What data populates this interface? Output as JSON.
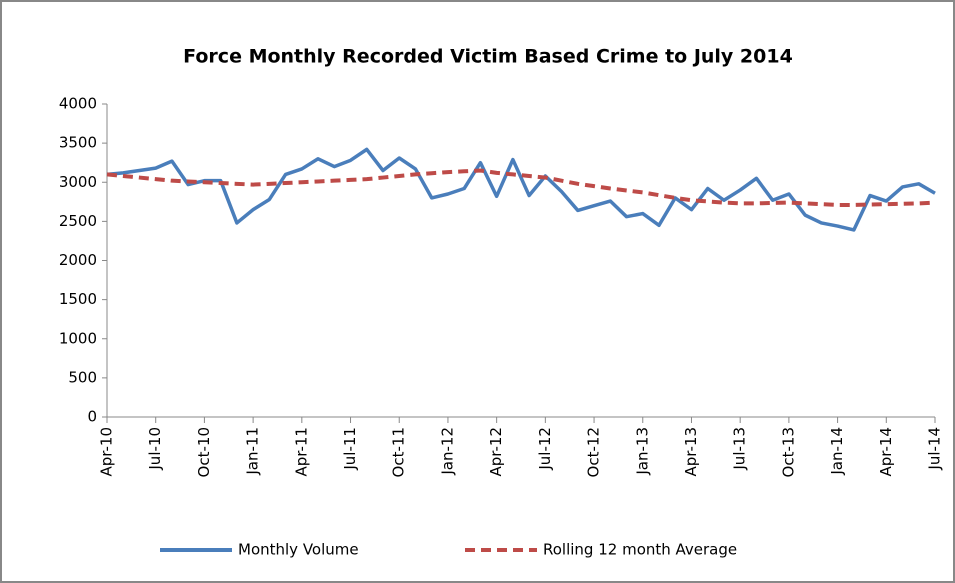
{
  "chart_data": {
    "type": "line",
    "title": "Force Monthly Recorded Victim Based Crime to July 2014",
    "categories": [
      "Apr-10",
      null,
      null,
      "Jul-10",
      null,
      null,
      "Oct-10",
      null,
      null,
      "Jan-11",
      null,
      null,
      "Apr-11",
      null,
      null,
      "Jul-11",
      null,
      null,
      "Oct-11",
      null,
      null,
      "Jan-12",
      null,
      null,
      "Apr-12",
      null,
      null,
      "Jul-12",
      null,
      null,
      "Oct-12",
      null,
      null,
      "Jan-13",
      null,
      null,
      "Apr-13",
      null,
      null,
      "Jul-13",
      null,
      null,
      "Oct-13",
      null,
      null,
      "Jan-14",
      null,
      null,
      "Apr-14",
      null,
      null,
      "Jul-14"
    ],
    "series": [
      {
        "name": "Monthly Volume",
        "color": "#4a7ebb",
        "dashed": false,
        "values": [
          3100,
          3120,
          3150,
          3180,
          3270,
          2970,
          3020,
          3020,
          2480,
          2650,
          2780,
          3100,
          3170,
          3300,
          3200,
          3280,
          3420,
          3150,
          3310,
          3170,
          2800,
          2850,
          2920,
          3250,
          2820,
          3290,
          2830,
          3080,
          2880,
          2640,
          2700,
          2760,
          2560,
          2600,
          2450,
          2800,
          2650,
          2920,
          2770,
          2900,
          3050,
          2770,
          2850,
          2580,
          2480,
          2440,
          2390,
          2830,
          2760,
          2940,
          2980,
          2860
        ]
      },
      {
        "name": "Rolling 12 month Average",
        "color": "#be4b48",
        "dashed": true,
        "values": [
          3100,
          3080,
          3060,
          3040,
          3020,
          3010,
          3000,
          2990,
          2980,
          2970,
          2980,
          2990,
          3000,
          3010,
          3020,
          3030,
          3040,
          3060,
          3080,
          3100,
          3115,
          3130,
          3140,
          3150,
          3120,
          3100,
          3080,
          3060,
          3020,
          2980,
          2950,
          2920,
          2895,
          2870,
          2835,
          2800,
          2770,
          2755,
          2740,
          2730,
          2730,
          2735,
          2740,
          2730,
          2720,
          2710,
          2710,
          2715,
          2720,
          2725,
          2730,
          2740
        ]
      }
    ],
    "ylim": [
      0,
      4000
    ],
    "yticks": [
      0,
      500,
      1000,
      1500,
      2000,
      2500,
      3000,
      3500,
      4000
    ],
    "grid": false
  }
}
